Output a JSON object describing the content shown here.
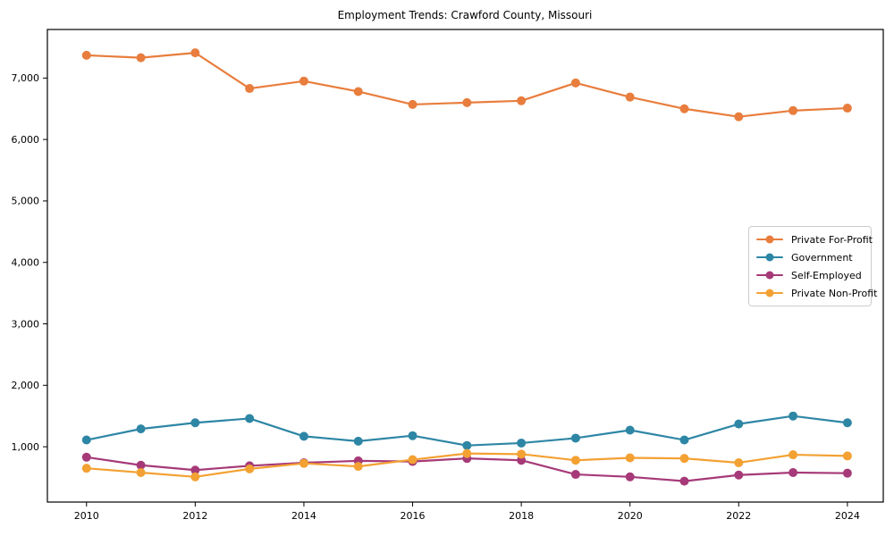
{
  "figure": {
    "background": "#ffffff",
    "axes_color": "#000000",
    "tick_label_color": "#000000",
    "legend_border_color": "#cccccc"
  },
  "chart_data": {
    "type": "line",
    "title": "Employment Trends: Crawford County, Missouri",
    "xlabel": "",
    "ylabel": "",
    "grid": false,
    "legend_position": "center-right",
    "x": [
      2010,
      2011,
      2012,
      2013,
      2014,
      2015,
      2016,
      2017,
      2018,
      2019,
      2020,
      2021,
      2022,
      2023,
      2024
    ],
    "x_ticks": [
      2010,
      2012,
      2014,
      2016,
      2018,
      2020,
      2022,
      2024
    ],
    "x_tick_labels": [
      "2010",
      "2012",
      "2014",
      "2016",
      "2018",
      "2020",
      "2022",
      "2024"
    ],
    "y_ticks": [
      1000,
      2000,
      3000,
      4000,
      5000,
      6000,
      7000
    ],
    "y_tick_labels": [
      "1,000",
      "2,000",
      "3,000",
      "4,000",
      "5,000",
      "6,000",
      "7,000"
    ],
    "xlim": [
      2009.28,
      2024.66
    ],
    "ylim": [
      100,
      7790
    ],
    "series": [
      {
        "name": "Private For-Profit",
        "color": "#e87d3d",
        "values": [
          7370,
          7330,
          7410,
          6830,
          6950,
          6780,
          6570,
          6600,
          6630,
          6920,
          6690,
          6500,
          6370,
          6470,
          6510
        ]
      },
      {
        "name": "Government",
        "color": "#2e86a5",
        "values": [
          1110,
          1290,
          1390,
          1460,
          1170,
          1090,
          1180,
          1020,
          1060,
          1140,
          1270,
          1110,
          1370,
          1500,
          1390
        ]
      },
      {
        "name": "Self-Employed",
        "color": "#a63a78",
        "values": [
          830,
          700,
          620,
          690,
          740,
          770,
          760,
          810,
          780,
          550,
          510,
          440,
          540,
          580,
          570
        ]
      },
      {
        "name": "Private Non-Profit",
        "color": "#f3a133",
        "values": [
          650,
          580,
          510,
          640,
          730,
          680,
          790,
          890,
          880,
          780,
          820,
          810,
          740,
          870,
          850
        ]
      }
    ]
  }
}
